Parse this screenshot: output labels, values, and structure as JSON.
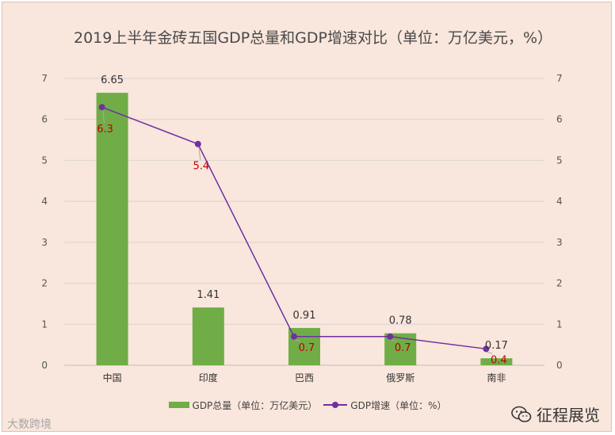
{
  "chart_data": {
    "type": "bar",
    "title": "2019上半年金砖五国GDP总量和GDP增速对比（单位：万亿美元，%）",
    "categories": [
      "中国",
      "印度",
      "巴西",
      "俄罗斯",
      "南非"
    ],
    "series": [
      {
        "name": "GDP总量（单位：万亿美元）",
        "type": "bar",
        "axis": "left",
        "values": [
          6.65,
          1.41,
          0.91,
          0.78,
          0.17
        ],
        "color": "#70ad47"
      },
      {
        "name": "GDP增速（单位：%）",
        "type": "line",
        "axis": "right",
        "values": [
          6.3,
          5.4,
          0.7,
          0.7,
          0.4
        ],
        "color": "#7030a0"
      }
    ],
    "ylim": [
      0,
      7
    ],
    "yticks": [
      "0",
      "1",
      "2",
      "3",
      "4",
      "5",
      "6",
      "7"
    ],
    "y2lim": [
      0,
      7
    ],
    "y2ticks": [
      "0",
      "1",
      "2",
      "3",
      "4",
      "5",
      "6",
      "7"
    ],
    "bar_labels": [
      "6.65",
      "1.41",
      "0.91",
      "0.78",
      "0.17"
    ],
    "point_labels": [
      "6.3",
      "5.4",
      "0.7",
      "0.7",
      "0.4"
    ],
    "grid": true,
    "legend_position": "bottom",
    "point_label_color": "#c00000"
  },
  "watermarks": {
    "left": "大数跨境",
    "right": "征程展览",
    "right_icon": "wechat-icon"
  }
}
